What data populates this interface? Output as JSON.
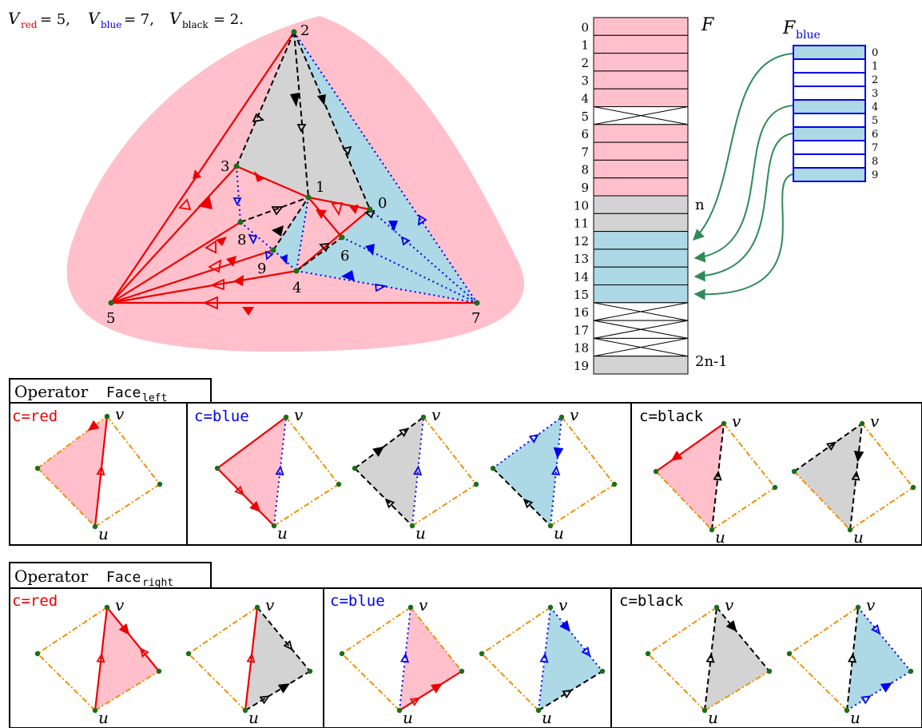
{
  "legend": {
    "text": "Vred = 5, Vblue = 7, Vblack = 2.",
    "v_red_label": "V",
    "v_red_sub": "red",
    "v_red_val": "= 5,",
    "v_blue_label": "V",
    "v_blue_sub": "blue",
    "v_blue_val": "= 7,",
    "v_black_label": "V",
    "v_black_sub": "black",
    "v_black_val": "= 2."
  },
  "graph": {
    "vertex_labels": [
      "0",
      "1",
      "2",
      "3",
      "4",
      "5",
      "6",
      "7",
      "8",
      "9"
    ]
  },
  "array_F": {
    "title": "F",
    "indices": [
      "0",
      "1",
      "2",
      "3",
      "4",
      "5",
      "6",
      "7",
      "8",
      "9",
      "10",
      "11",
      "12",
      "13",
      "14",
      "15",
      "16",
      "17",
      "18",
      "19"
    ],
    "cell_states": [
      "red",
      "red",
      "red",
      "red",
      "red",
      "x",
      "red",
      "red",
      "red",
      "red",
      "grey",
      "grey",
      "blue",
      "blue",
      "blue",
      "blue",
      "x",
      "x",
      "x",
      "grey"
    ],
    "marker_n": "n",
    "marker_2n1": "2n-1"
  },
  "array_Fblue": {
    "title": "F",
    "title_sub": "blue",
    "indices": [
      "0",
      "1",
      "2",
      "3",
      "4",
      "5",
      "6",
      "7",
      "8",
      "9"
    ],
    "cell_states": [
      "blue",
      "white",
      "white",
      "white",
      "blue",
      "white",
      "blue",
      "white",
      "white",
      "blue"
    ]
  },
  "panels": {
    "left": {
      "title_prefix": "Operator ",
      "title_code": "Face",
      "title_sub": "left",
      "c_red": "c=red",
      "c_blue": "c=blue",
      "c_black": "c=black"
    },
    "right": {
      "title_prefix": "Operator ",
      "title_code": "Face",
      "title_sub": "right",
      "c_red": "c=red",
      "c_blue": "c=blue",
      "c_black": "c=black"
    },
    "u_label": "u",
    "v_label": "v"
  },
  "colors": {
    "pink": "#ffc0cb",
    "lightblue": "#add8e6",
    "grey": "#d3d3d3",
    "red": "#ee0000",
    "blue": "#0000ee",
    "black": "#000000",
    "orange": "#f09000",
    "green": "#2e8b57",
    "vertex": "#1a6e1a"
  }
}
